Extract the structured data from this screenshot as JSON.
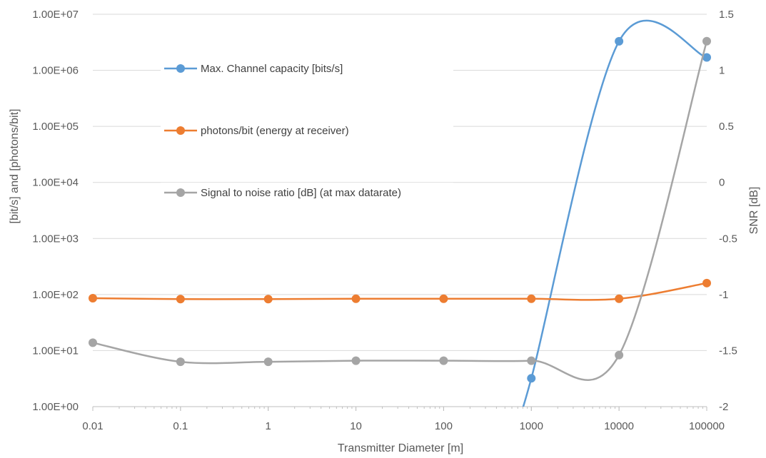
{
  "chart_data": {
    "type": "line",
    "xlabel": "Transmitter Diameter [m]",
    "ylabel": "[bit/s] and [photons/bit]",
    "y2label": "SNR [dB]",
    "x_scale": "log",
    "y_scale": "log",
    "x": [
      0.01,
      0.1,
      1,
      10,
      100,
      1000,
      10000,
      100000
    ],
    "x_tick_labels": [
      "0.01",
      "0.1",
      "1",
      "10",
      "100",
      "1000",
      "10000",
      "100000"
    ],
    "ylim": [
      1,
      10000000
    ],
    "y_tick_values": [
      1,
      10,
      100,
      1000,
      10000,
      100000,
      1000000,
      10000000
    ],
    "y_tick_labels": [
      "1.00E+00",
      "1.00E+01",
      "1.00E+02",
      "1.00E+03",
      "1.00E+04",
      "1.00E+05",
      "1.00E+06",
      "1.00E+07"
    ],
    "y2lim": [
      -2,
      1.5
    ],
    "y2_tick_values": [
      -2,
      -1.5,
      -1,
      -0.5,
      0,
      0.5,
      1,
      1.5
    ],
    "y2_tick_labels": [
      "-2",
      "-1.5",
      "-1",
      "-0.5",
      "0",
      "0.5",
      "1",
      "1.5"
    ],
    "grid": "horizontal",
    "legend_position": "inside top-left",
    "series": [
      {
        "name": "Max. Channel capacity [bits/s]",
        "axis": "left",
        "color": "#5b9bd5",
        "values": [
          null,
          null,
          null,
          null,
          null,
          3.2,
          3300000,
          1700000
        ]
      },
      {
        "name": "photons/bit (energy at receiver)",
        "axis": "left",
        "color": "#ed7d31",
        "values": [
          86,
          83,
          83,
          84,
          84,
          84,
          84,
          160
        ]
      },
      {
        "name": "Signal to noise ratio [dB] (at max datarate)",
        "axis": "right",
        "color": "#a5a5a5",
        "values": [
          -1.43,
          -1.6,
          -1.6,
          -1.59,
          -1.59,
          -1.59,
          -1.54,
          1.26
        ]
      }
    ]
  }
}
